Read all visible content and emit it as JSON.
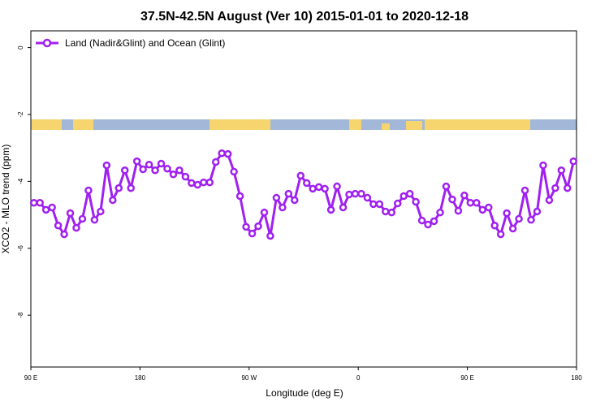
{
  "chart_data": {
    "type": "line",
    "title": "37.5N-42.5N August (Ver 10)   2015-01-01 to 2020-12-18",
    "x_label": "Longitude (deg E)",
    "y_label": "XCO2 - MLO trend (ppm)",
    "x": [
      92.5,
      97.5,
      102.5,
      107.5,
      112.5,
      117.5,
      122.5,
      127.5,
      132.5,
      137.5,
      142.5,
      147.5,
      152.5,
      157.5,
      162.5,
      167.5,
      172.5,
      177.5,
      182.5,
      187.5,
      192.5,
      197.5,
      202.5,
      207.5,
      212.5,
      217.5,
      222.5,
      227.5,
      232.5,
      237.5,
      242.5,
      247.5,
      252.5,
      257.5,
      262.5,
      267.5,
      272.5,
      277.5,
      282.5,
      287.5,
      292.5,
      297.5,
      302.5,
      307.5,
      312.5,
      317.5,
      322.5,
      327.5,
      332.5,
      337.5,
      342.5,
      347.5,
      352.5,
      357.5,
      362.5,
      367.5,
      372.5,
      377.5,
      382.5,
      387.5,
      392.5,
      397.5,
      402.5,
      407.5,
      412.5,
      417.5,
      422.5,
      427.5,
      432.5,
      437.5,
      442.5,
      447.5,
      452.5,
      457.5,
      462.5,
      467.5,
      472.5,
      477.5,
      482.5,
      487.5,
      492.5,
      497.5,
      502.5,
      507.5,
      512.5,
      517.5,
      522.5,
      527.5,
      532.5,
      537.5
    ],
    "series": [
      {
        "name": "Land (Nadir&Glint) and Ocean (Glint)",
        "color": "#a020f0",
        "values": [
          -4.64,
          -4.64,
          -4.85,
          -4.78,
          -5.32,
          -5.58,
          -4.95,
          -5.39,
          -5.12,
          -4.27,
          -5.15,
          -4.9,
          -3.52,
          -4.56,
          -4.2,
          -3.67,
          -4.2,
          -3.4,
          -3.64,
          -3.5,
          -3.67,
          -3.47,
          -3.62,
          -3.79,
          -3.67,
          -3.86,
          -4.05,
          -4.1,
          -4.03,
          -4.03,
          -3.42,
          -3.16,
          -3.18,
          -3.71,
          -4.44,
          -5.36,
          -5.56,
          -5.34,
          -4.93,
          -5.63,
          -4.49,
          -4.78,
          -4.37,
          -4.56,
          -3.83,
          -4.05,
          -4.22,
          -4.17,
          -4.22,
          -4.85,
          -4.15,
          -4.78,
          -4.39,
          -4.37,
          -4.37,
          -4.49,
          -4.68,
          -4.68,
          -4.9,
          -4.93,
          -4.66,
          -4.44,
          -4.37,
          -4.61,
          -5.17,
          -5.29,
          -5.19,
          -4.93,
          -4.15,
          -4.54,
          -4.88,
          -4.42,
          -4.64,
          -4.64,
          -4.85,
          -4.78,
          -5.32,
          -5.58,
          -4.95,
          -5.41,
          -5.12,
          -4.27,
          -5.15,
          -4.9,
          -3.52,
          -4.56,
          -4.2,
          -3.67,
          -4.2,
          -3.4
        ]
      }
    ],
    "xlim": [
      90,
      540
    ],
    "xticks": [
      {
        "value": 90,
        "label": "90 E"
      },
      {
        "value": 180,
        "label": "180"
      },
      {
        "value": 270,
        "label": "90 W"
      },
      {
        "value": 360,
        "label": "0"
      },
      {
        "value": 450,
        "label": "90 E"
      },
      {
        "value": 540,
        "label": "180"
      }
    ],
    "ylim": [
      -9.55,
      0.5
    ],
    "yticks": [
      0,
      -2,
      -4,
      -6,
      -8
    ],
    "grid": false,
    "legend": "top-left"
  }
}
